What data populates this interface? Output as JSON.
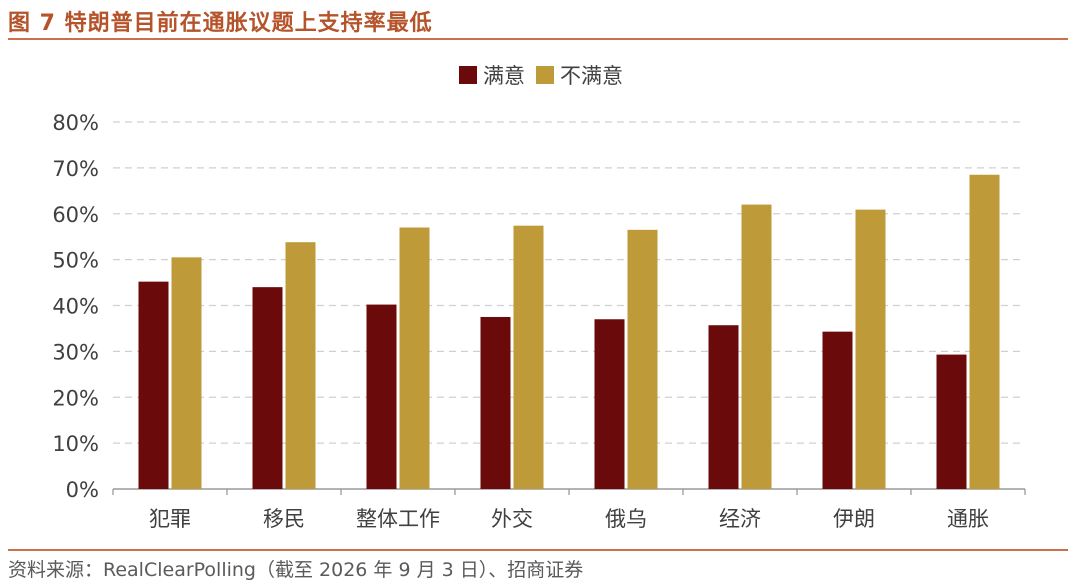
{
  "figure": {
    "title": "图 7 特朗普目前在通胀议题上支持率最低",
    "source": "资料来源：RealClearPolling（截至 2026 年 9 月 3 日）、招商证券"
  },
  "colors": {
    "title": "#b5532a",
    "rule": "#c8714a",
    "satisfied": "#6a0a0a",
    "dissatisfied": "#bf9a38",
    "grid": "#d0d0d0",
    "axis": "#9a9a9a",
    "tick_text": "#404040"
  },
  "chart_data": {
    "type": "bar",
    "title": "",
    "xlabel": "",
    "ylabel": "",
    "categories": [
      "犯罪",
      "移民",
      "整体工作",
      "外交",
      "俄乌",
      "经济",
      "伊朗",
      "通胀"
    ],
    "series": [
      {
        "name": "满意",
        "values": [
          45.2,
          44.0,
          40.2,
          37.5,
          37.0,
          35.7,
          34.3,
          29.3
        ]
      },
      {
        "name": "不满意",
        "values": [
          50.5,
          53.8,
          57.0,
          57.4,
          56.5,
          62.0,
          60.9,
          68.5
        ]
      }
    ],
    "ylim": [
      0,
      80
    ],
    "yticks": [
      0,
      10,
      20,
      30,
      40,
      50,
      60,
      70,
      80
    ],
    "ytick_labels": [
      "0%",
      "10%",
      "20%",
      "30%",
      "40%",
      "50%",
      "60%",
      "70%",
      "80%"
    ],
    "grid": true,
    "legend_position": "top-center"
  }
}
